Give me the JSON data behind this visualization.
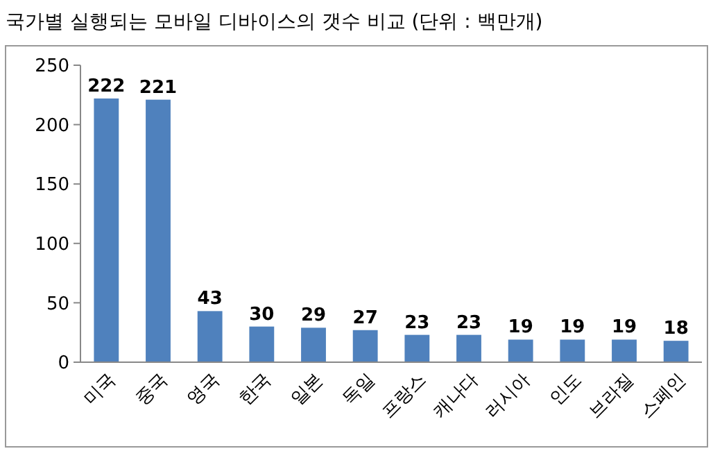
{
  "chart_data": {
    "type": "bar",
    "title": "국가별 실행되는 모바일 디바이스의 갯수 비교 (단위 : 백만개)",
    "categories": [
      "미국",
      "중국",
      "영국",
      "한국",
      "일본",
      "독일",
      "프랑스",
      "캐나다",
      "러시아",
      "인도",
      "브라질",
      "스페인"
    ],
    "values": [
      222,
      221,
      43,
      30,
      29,
      27,
      23,
      23,
      19,
      19,
      19,
      18
    ],
    "color": "#4f81bd",
    "ylim": [
      0,
      250
    ],
    "yticks": [
      0,
      50,
      100,
      150,
      200,
      250
    ],
    "grid": false,
    "data_labels": true
  }
}
